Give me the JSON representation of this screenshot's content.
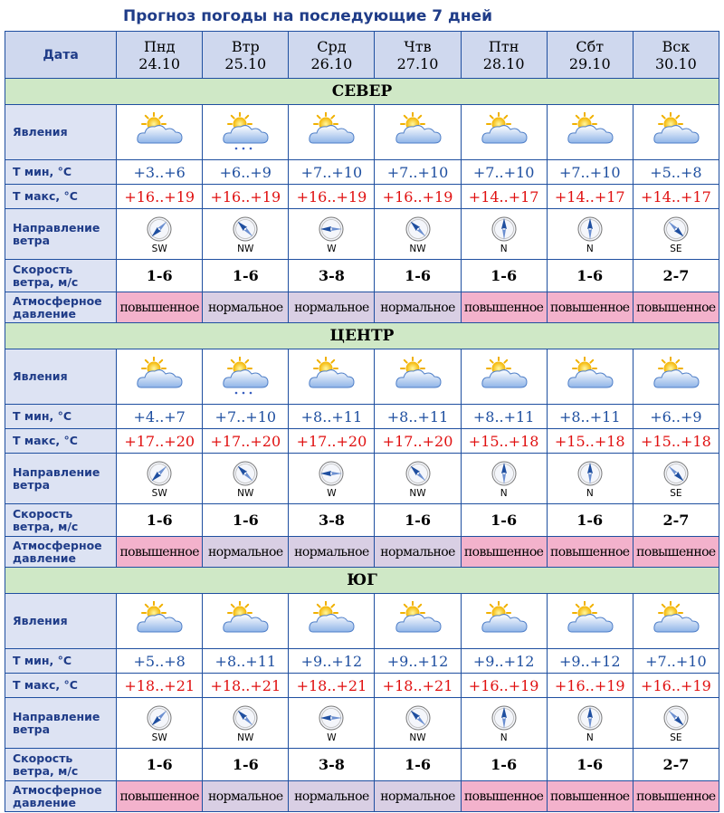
{
  "title": "Прогноз погоды на последующие 7 дней",
  "header": {
    "date_label": "Дата",
    "days": [
      {
        "name": "Пнд",
        "date": "24.10"
      },
      {
        "name": "Втр",
        "date": "25.10"
      },
      {
        "name": "Срд",
        "date": "26.10"
      },
      {
        "name": "Чтв",
        "date": "27.10"
      },
      {
        "name": "Птн",
        "date": "28.10"
      },
      {
        "name": "Сбт",
        "date": "29.10"
      },
      {
        "name": "Вск",
        "date": "30.10"
      }
    ]
  },
  "row_labels": {
    "phenomena": "Явления",
    "tmin": "Т мин, °С",
    "tmax": "Т макс, °С",
    "wind_dir_1": "Направление",
    "wind_dir_2": "ветра",
    "wind_speed_1": "Скорость",
    "wind_speed_2": "ветра, м/с",
    "pressure_1": "Атмосферное",
    "pressure_2": "давление"
  },
  "weather_icon": "partly-cloudy-icon",
  "regions": [
    {
      "name": "СЕВЕР",
      "icons": [
        "partly-cloudy",
        "partly-cloudy-snow",
        "partly-cloudy",
        "partly-cloudy",
        "partly-cloudy",
        "partly-cloudy",
        "partly-cloudy"
      ],
      "tmin": [
        "+3..+6",
        "+6..+9",
        "+7..+10",
        "+7..+10",
        "+7..+10",
        "+7..+10",
        "+5..+8"
      ],
      "tmax": [
        "+16..+19",
        "+16..+19",
        "+16..+19",
        "+16..+19",
        "+14..+17",
        "+14..+17",
        "+14..+17"
      ],
      "wind_dir": [
        "SW",
        "NW",
        "W",
        "NW",
        "N",
        "N",
        "SE"
      ],
      "wind_speed": [
        "1-6",
        "1-6",
        "3-8",
        "1-6",
        "1-6",
        "1-6",
        "2-7"
      ],
      "pressure": [
        "повышенное",
        "нормальное",
        "нормальное",
        "нормальное",
        "повышенное",
        "повышенное",
        "повышенное"
      ]
    },
    {
      "name": "ЦЕНТР",
      "icons": [
        "partly-cloudy",
        "partly-cloudy-snow",
        "partly-cloudy",
        "partly-cloudy",
        "partly-cloudy",
        "partly-cloudy",
        "partly-cloudy"
      ],
      "tmin": [
        "+4..+7",
        "+7..+10",
        "+8..+11",
        "+8..+11",
        "+8..+11",
        "+8..+11",
        "+6..+9"
      ],
      "tmax": [
        "+17..+20",
        "+17..+20",
        "+17..+20",
        "+17..+20",
        "+15..+18",
        "+15..+18",
        "+15..+18"
      ],
      "wind_dir": [
        "SW",
        "NW",
        "W",
        "NW",
        "N",
        "N",
        "SE"
      ],
      "wind_speed": [
        "1-6",
        "1-6",
        "3-8",
        "1-6",
        "1-6",
        "1-6",
        "2-7"
      ],
      "pressure": [
        "повышенное",
        "нормальное",
        "нормальное",
        "нормальное",
        "повышенное",
        "повышенное",
        "повышенное"
      ]
    },
    {
      "name": "ЮГ",
      "icons": [
        "partly-cloudy",
        "partly-cloudy",
        "partly-cloudy",
        "partly-cloudy",
        "partly-cloudy",
        "partly-cloudy",
        "partly-cloudy"
      ],
      "tmin": [
        "+5..+8",
        "+8..+11",
        "+9..+12",
        "+9..+12",
        "+9..+12",
        "+9..+12",
        "+7..+10"
      ],
      "tmax": [
        "+18..+21",
        "+18..+21",
        "+18..+21",
        "+18..+21",
        "+16..+19",
        "+16..+19",
        "+16..+19"
      ],
      "wind_dir": [
        "SW",
        "NW",
        "W",
        "NW",
        "N",
        "N",
        "SE"
      ],
      "wind_speed": [
        "1-6",
        "1-6",
        "3-8",
        "1-6",
        "1-6",
        "1-6",
        "2-7"
      ],
      "pressure": [
        "повышенное",
        "нормальное",
        "нормальное",
        "нормальное",
        "повышенное",
        "повышенное",
        "повышенное"
      ]
    }
  ],
  "colors": {
    "header_bg": "#cfd8ee",
    "region_bg": "#cfe8c6",
    "tmin": "#1f4fa0",
    "tmax": "#e01010",
    "pressure_high": "#f3b2cc",
    "pressure_normal": "#d9cfe4"
  }
}
